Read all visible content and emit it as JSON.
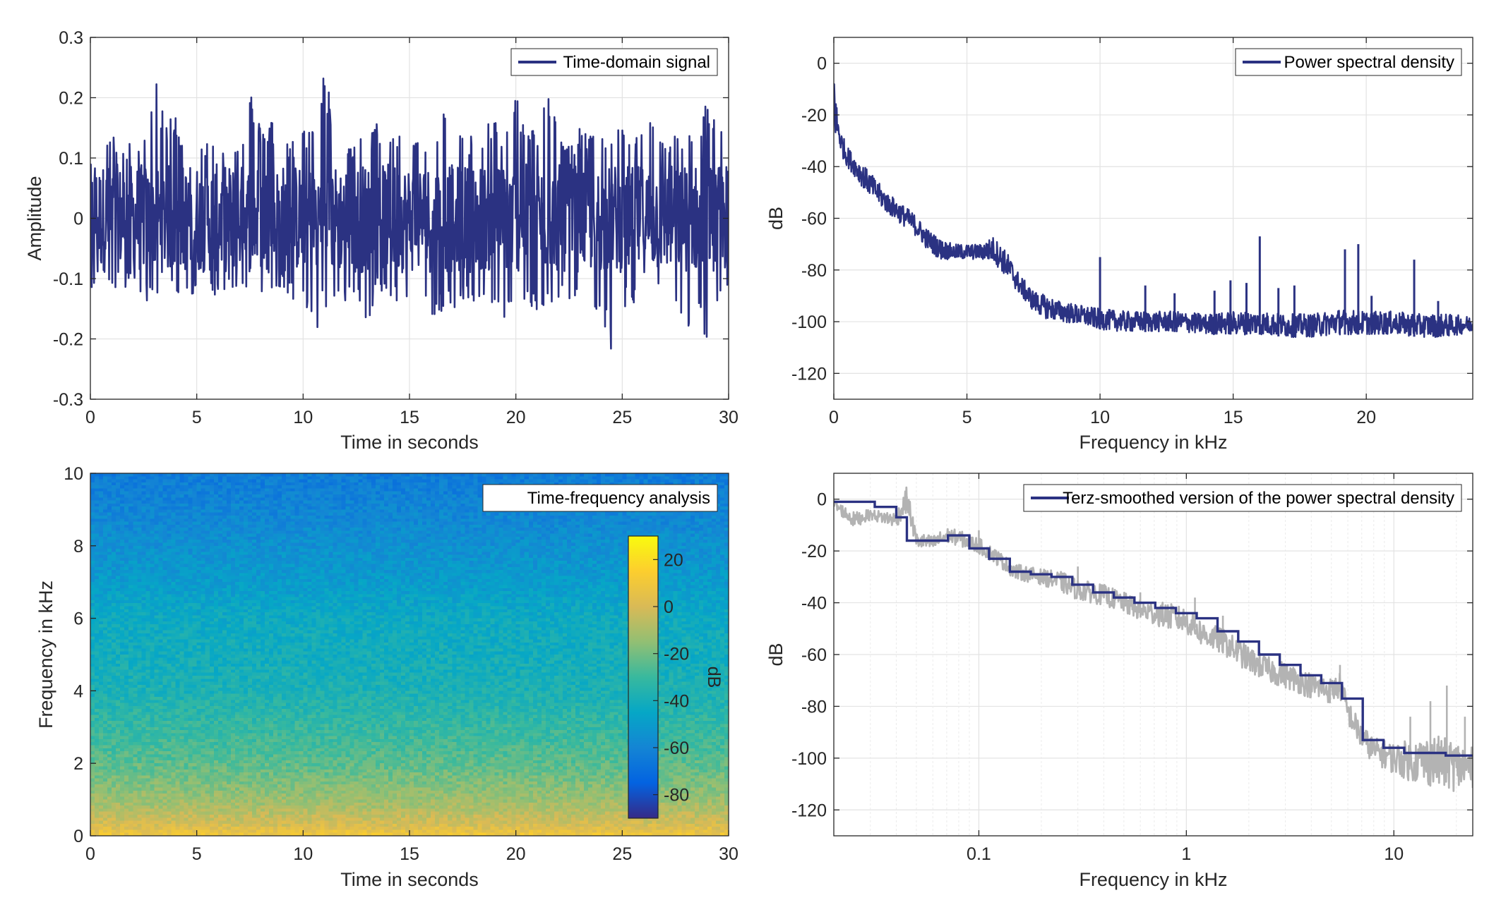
{
  "chart_data": [
    {
      "id": "time",
      "type": "line",
      "xlabel": "Time in seconds",
      "ylabel": "Amplitude",
      "xlim": [
        0,
        30
      ],
      "ylim": [
        -0.3,
        0.3
      ],
      "xticks": [
        0,
        5,
        10,
        15,
        20,
        25,
        30
      ],
      "xtick_labels": [
        "0",
        "5",
        "10",
        "15",
        "20",
        "25",
        "30"
      ],
      "yticks": [
        -0.3,
        -0.2,
        -0.1,
        0,
        0.1,
        0.2,
        0.3
      ],
      "ytick_labels": [
        "-0.3",
        "-0.2",
        "-0.1",
        "0",
        "0.1",
        "0.2",
        "0.3"
      ],
      "grid": true,
      "legend_position": "top-right",
      "series": [
        {
          "name": "Time-domain signal",
          "color": "#2b3282",
          "x": [
            0,
            0.5,
            1,
            1.5,
            2,
            2.5,
            3,
            3.5,
            4,
            4.5,
            5,
            5.5,
            6,
            6.5,
            7,
            7.5,
            8,
            8.5,
            9,
            9.5,
            10,
            10.5,
            11,
            11.5,
            12,
            12.5,
            13,
            13.5,
            14,
            14.5,
            15,
            15.5,
            16,
            16.5,
            17,
            17.5,
            18,
            18.5,
            19,
            19.5,
            20,
            20.5,
            21,
            21.5,
            22,
            22.5,
            23,
            23.5,
            24,
            24.5,
            25,
            25.5,
            26,
            26.5,
            27,
            27.5,
            28,
            28.5,
            29,
            29.5,
            30
          ],
          "y_max": [
            0.07,
            0.13,
            0.14,
            0.12,
            0.13,
            0.13,
            0.24,
            0.16,
            0.18,
            0.13,
            0.14,
            0.13,
            0.13,
            0.13,
            0.12,
            0.22,
            0.15,
            0.17,
            0.13,
            0.13,
            0.15,
            0.16,
            0.25,
            0.16,
            0.13,
            0.13,
            0.14,
            0.16,
            0.14,
            0.15,
            0.15,
            0.14,
            0.15,
            0.18,
            0.17,
            0.14,
            0.14,
            0.14,
            0.18,
            0.14,
            0.21,
            0.15,
            0.15,
            0.23,
            0.14,
            0.13,
            0.15,
            0.14,
            0.15,
            0.16,
            0.15,
            0.13,
            0.17,
            0.16,
            0.12,
            0.14,
            0.15,
            0.14,
            0.2,
            0.15,
            0.2
          ],
          "y_min": [
            -0.12,
            -0.1,
            -0.12,
            -0.12,
            -0.11,
            -0.13,
            -0.16,
            -0.14,
            -0.13,
            -0.13,
            -0.13,
            -0.11,
            -0.14,
            -0.12,
            -0.13,
            -0.16,
            -0.13,
            -0.14,
            -0.12,
            -0.14,
            -0.12,
            -0.2,
            -0.15,
            -0.16,
            -0.14,
            -0.13,
            -0.2,
            -0.13,
            -0.15,
            -0.14,
            -0.14,
            -0.14,
            -0.17,
            -0.16,
            -0.15,
            -0.14,
            -0.15,
            -0.13,
            -0.16,
            -0.18,
            -0.14,
            -0.14,
            -0.16,
            -0.16,
            -0.14,
            -0.15,
            -0.14,
            -0.13,
            -0.17,
            -0.22,
            -0.15,
            -0.14,
            -0.14,
            -0.14,
            -0.14,
            -0.14,
            -0.2,
            -0.13,
            -0.22,
            -0.13,
            -0.12
          ]
        }
      ]
    },
    {
      "id": "psd",
      "type": "line",
      "xlabel": "Frequency in kHz",
      "ylabel": "dB",
      "xlim": [
        0,
        24
      ],
      "ylim": [
        -130,
        10
      ],
      "xticks": [
        0,
        5,
        10,
        15,
        20
      ],
      "xtick_labels": [
        "0",
        "5",
        "10",
        "15",
        "20"
      ],
      "yticks": [
        0,
        -20,
        -40,
        -60,
        -80,
        -100,
        -120
      ],
      "ytick_labels": [
        "0",
        "-20",
        "-40",
        "-60",
        "-80",
        "-100",
        "-120"
      ],
      "grid": true,
      "legend_position": "top-right",
      "series": [
        {
          "name": "Power spectral density",
          "color": "#2b3282",
          "x": [
            0,
            0.05,
            0.1,
            0.2,
            0.3,
            0.5,
            0.8,
            1,
            1.5,
            2,
            2.5,
            3,
            3.5,
            4,
            4.5,
            5,
            5.5,
            6,
            6.5,
            7,
            7.5,
            8,
            8.5,
            9,
            10,
            11,
            12,
            13,
            14,
            15,
            16,
            17,
            18,
            19,
            20,
            21,
            22,
            23,
            24
          ],
          "y_upper": [
            8,
            -5,
            -15,
            -22,
            -27,
            -32,
            -36,
            -38,
            -44,
            -50,
            -54,
            -58,
            -64,
            -68,
            -70,
            -70,
            -70,
            -67,
            -73,
            -82,
            -88,
            -90,
            -92,
            -93,
            -95,
            -96,
            -96,
            -96,
            -97,
            -96,
            -96,
            -97,
            -97,
            -95,
            -96,
            -96,
            -97,
            -97,
            -98
          ],
          "y_lower": [
            -35,
            -30,
            -30,
            -32,
            -36,
            -40,
            -44,
            -47,
            -53,
            -58,
            -62,
            -66,
            -72,
            -76,
            -76,
            -76,
            -76,
            -77,
            -83,
            -90,
            -96,
            -99,
            -100,
            -101,
            -103,
            -104,
            -104,
            -104,
            -105,
            -105,
            -105,
            -106,
            -106,
            -105,
            -105,
            -105,
            -106,
            -106,
            -104
          ],
          "peaks": [
            {
              "x": 10,
              "y": -75
            },
            {
              "x": 11.7,
              "y": -86
            },
            {
              "x": 12.8,
              "y": -89
            },
            {
              "x": 14.3,
              "y": -88
            },
            {
              "x": 14.9,
              "y": -84
            },
            {
              "x": 15.5,
              "y": -85
            },
            {
              "x": 16,
              "y": -67
            },
            {
              "x": 16.7,
              "y": -87
            },
            {
              "x": 17.3,
              "y": -86
            },
            {
              "x": 19.2,
              "y": -72
            },
            {
              "x": 19.7,
              "y": -70
            },
            {
              "x": 20.2,
              "y": -90
            },
            {
              "x": 21.8,
              "y": -76
            },
            {
              "x": 22.7,
              "y": -92
            }
          ]
        }
      ]
    },
    {
      "id": "spectrogram",
      "type": "heatmap",
      "xlabel": "Time in seconds",
      "ylabel": "Frequency in kHz",
      "xlim": [
        0,
        30
      ],
      "ylim": [
        0,
        10
      ],
      "xticks": [
        0,
        5,
        10,
        15,
        20,
        25,
        30
      ],
      "xtick_labels": [
        "0",
        "5",
        "10",
        "15",
        "20",
        "25",
        "30"
      ],
      "yticks": [
        0,
        2,
        4,
        6,
        8,
        10
      ],
      "ytick_labels": [
        "0",
        "2",
        "4",
        "6",
        "8",
        "10"
      ],
      "title_box": "Time-frequency analysis",
      "colorbar": {
        "label": "dB",
        "range": [
          -90,
          30
        ],
        "ticks": [
          20,
          0,
          -20,
          -40,
          -60,
          -80
        ],
        "tick_labels": [
          "20",
          "0",
          "-20",
          "-40",
          "-60",
          "-80"
        ],
        "colormap": "parula",
        "stops": [
          "#352a87",
          "#0363e1",
          "#1485d4",
          "#06a7c6",
          "#38b99e",
          "#92bf73",
          "#d9ba56",
          "#fcce2e",
          "#f9fb0e"
        ]
      },
      "profile_freq_khz": [
        0,
        0.3,
        0.8,
        1.2,
        1.8,
        2.5,
        3,
        4,
        5,
        6,
        7,
        8,
        9,
        10
      ],
      "profile_db": [
        10,
        0,
        -10,
        -15,
        -22,
        -28,
        -31,
        -38,
        -41,
        -43,
        -50,
        -55,
        -60,
        -64
      ]
    },
    {
      "id": "terz",
      "type": "line",
      "xlabel": "Frequency in kHz",
      "ylabel": "dB",
      "xscale": "log",
      "xlim": [
        0.02,
        24
      ],
      "ylim": [
        -130,
        10
      ],
      "xticks": [
        0.1,
        1,
        10
      ],
      "xtick_labels": [
        "0.1",
        "1",
        "10"
      ],
      "yticks": [
        0,
        -20,
        -40,
        -60,
        -80,
        -100,
        -120
      ],
      "ytick_labels": [
        "0",
        "-20",
        "-40",
        "-60",
        "-80",
        "-100",
        "-120"
      ],
      "grid": true,
      "legend_position": "top-right",
      "series": [
        {
          "name": "",
          "color": "#b3b3b3",
          "x": [
            0.02,
            0.025,
            0.03,
            0.04,
            0.045,
            0.05,
            0.06,
            0.07,
            0.08,
            0.1,
            0.12,
            0.15,
            0.2,
            0.25,
            0.3,
            0.4,
            0.5,
            0.6,
            0.8,
            1,
            1.2,
            1.5,
            2,
            2.5,
            3,
            4,
            5,
            5.5,
            6,
            7,
            8,
            10,
            12,
            15,
            18,
            20,
            24
          ],
          "y": [
            -2,
            -8,
            -6,
            -8,
            0,
            -16,
            -17,
            -14,
            -15,
            -18,
            -22,
            -28,
            -30,
            -32,
            -35,
            -37,
            -40,
            -43,
            -45,
            -47,
            -52,
            -55,
            -62,
            -66,
            -68,
            -72,
            -74,
            -72,
            -82,
            -92,
            -97,
            -100,
            -101,
            -101,
            -102,
            -103,
            -104
          ],
          "spread": [
            2,
            3,
            2,
            3,
            5,
            3,
            3,
            3,
            3,
            3,
            3,
            3,
            3,
            4,
            4,
            4,
            4,
            4,
            5,
            5,
            5,
            5,
            5,
            5,
            5,
            5,
            5,
            5,
            5,
            5,
            5,
            6,
            8,
            10,
            10,
            10,
            8
          ],
          "peaks": [
            {
              "x": 0.045,
              "y": 1
            },
            {
              "x": 0.1,
              "y": -12
            },
            {
              "x": 0.13,
              "y": -22
            },
            {
              "x": 0.3,
              "y": -26
            },
            {
              "x": 0.6,
              "y": -36
            },
            {
              "x": 1.1,
              "y": -38
            },
            {
              "x": 1.5,
              "y": -45
            },
            {
              "x": 5.5,
              "y": -64
            },
            {
              "x": 12,
              "y": -84
            },
            {
              "x": 15,
              "y": -78
            },
            {
              "x": 18,
              "y": -72
            },
            {
              "x": 22,
              "y": -84
            }
          ]
        },
        {
          "name": "Terz-smoothed version of the power spectral density",
          "color": "#2b3282",
          "edges": [
            0.02,
            0.0315,
            0.04,
            0.045,
            0.0565,
            0.071,
            0.09,
            0.112,
            0.141,
            0.178,
            0.224,
            0.282,
            0.355,
            0.447,
            0.562,
            0.708,
            0.891,
            1.122,
            1.413,
            1.778,
            2.239,
            2.818,
            3.548,
            4.467,
            5.623,
            7.079,
            8.913,
            11.22,
            14.13,
            17.78,
            24
          ],
          "levels": [
            -1,
            -3,
            -7,
            -16,
            -16,
            -14,
            -19,
            -23,
            -28,
            -29,
            -30,
            -33,
            -36,
            -38,
            -40,
            -42,
            -44,
            -46,
            -51,
            -55,
            -60,
            -64,
            -68,
            -71,
            -77,
            -93,
            -96,
            -98,
            -98,
            -99
          ]
        }
      ]
    }
  ]
}
